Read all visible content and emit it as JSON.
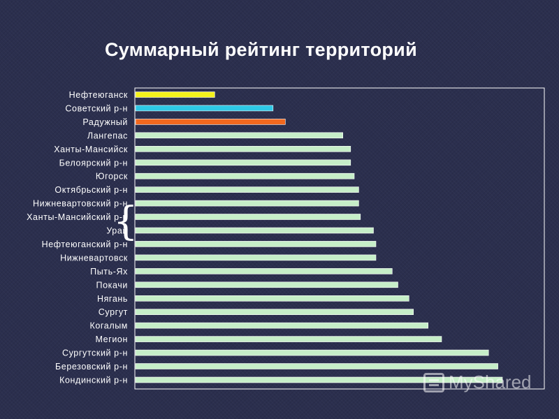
{
  "chart_data": {
    "type": "bar",
    "orientation": "horizontal",
    "title": "Суммарный рейтинг территорий",
    "xlabel": "",
    "ylabel": "",
    "grid": false,
    "xlim": [
      0,
      100
    ],
    "categories": [
      "Нефтеюганск",
      "Советский р-н",
      "Радужный",
      "Лангепас",
      "Ханты-Мансийск",
      "Белоярский р-н",
      "Югорск",
      "Октябрьский р-н",
      "Нижневартовский р-н",
      "Ханты-Мансийский р-н",
      "Урай",
      "Нефтеюганский р-н",
      "Нижневартовск",
      "Пыть-Ях",
      "Покачи",
      "Нягань",
      "Сургут",
      "Когалым",
      "Мегион",
      "Сургутский р-н",
      "Березовский р-н",
      "Кондинский р-н"
    ],
    "values": [
      19.4,
      33.7,
      36.7,
      50.8,
      52.7,
      52.7,
      53.6,
      54.7,
      54.7,
      55.1,
      58.3,
      58.9,
      58.9,
      62.9,
      64.3,
      67.0,
      68.1,
      71.7,
      75.0,
      86.5,
      88.8,
      89.9
    ],
    "colors": [
      "#f4f21c",
      "#2ec8e6",
      "#f2681f",
      "#c6eec8",
      "#c6eec8",
      "#c6eec8",
      "#c6eec8",
      "#c6eec8",
      "#c6eec8",
      "#c6eec8",
      "#c6eec8",
      "#c6eec8",
      "#c6eec8",
      "#c6eec8",
      "#c6eec8",
      "#c6eec8",
      "#c6eec8",
      "#c6eec8",
      "#c6eec8",
      "#c6eec8",
      "#c6eec8",
      "#c6eec8"
    ]
  },
  "decor": {
    "brace": "{",
    "watermark": "MyShared"
  }
}
